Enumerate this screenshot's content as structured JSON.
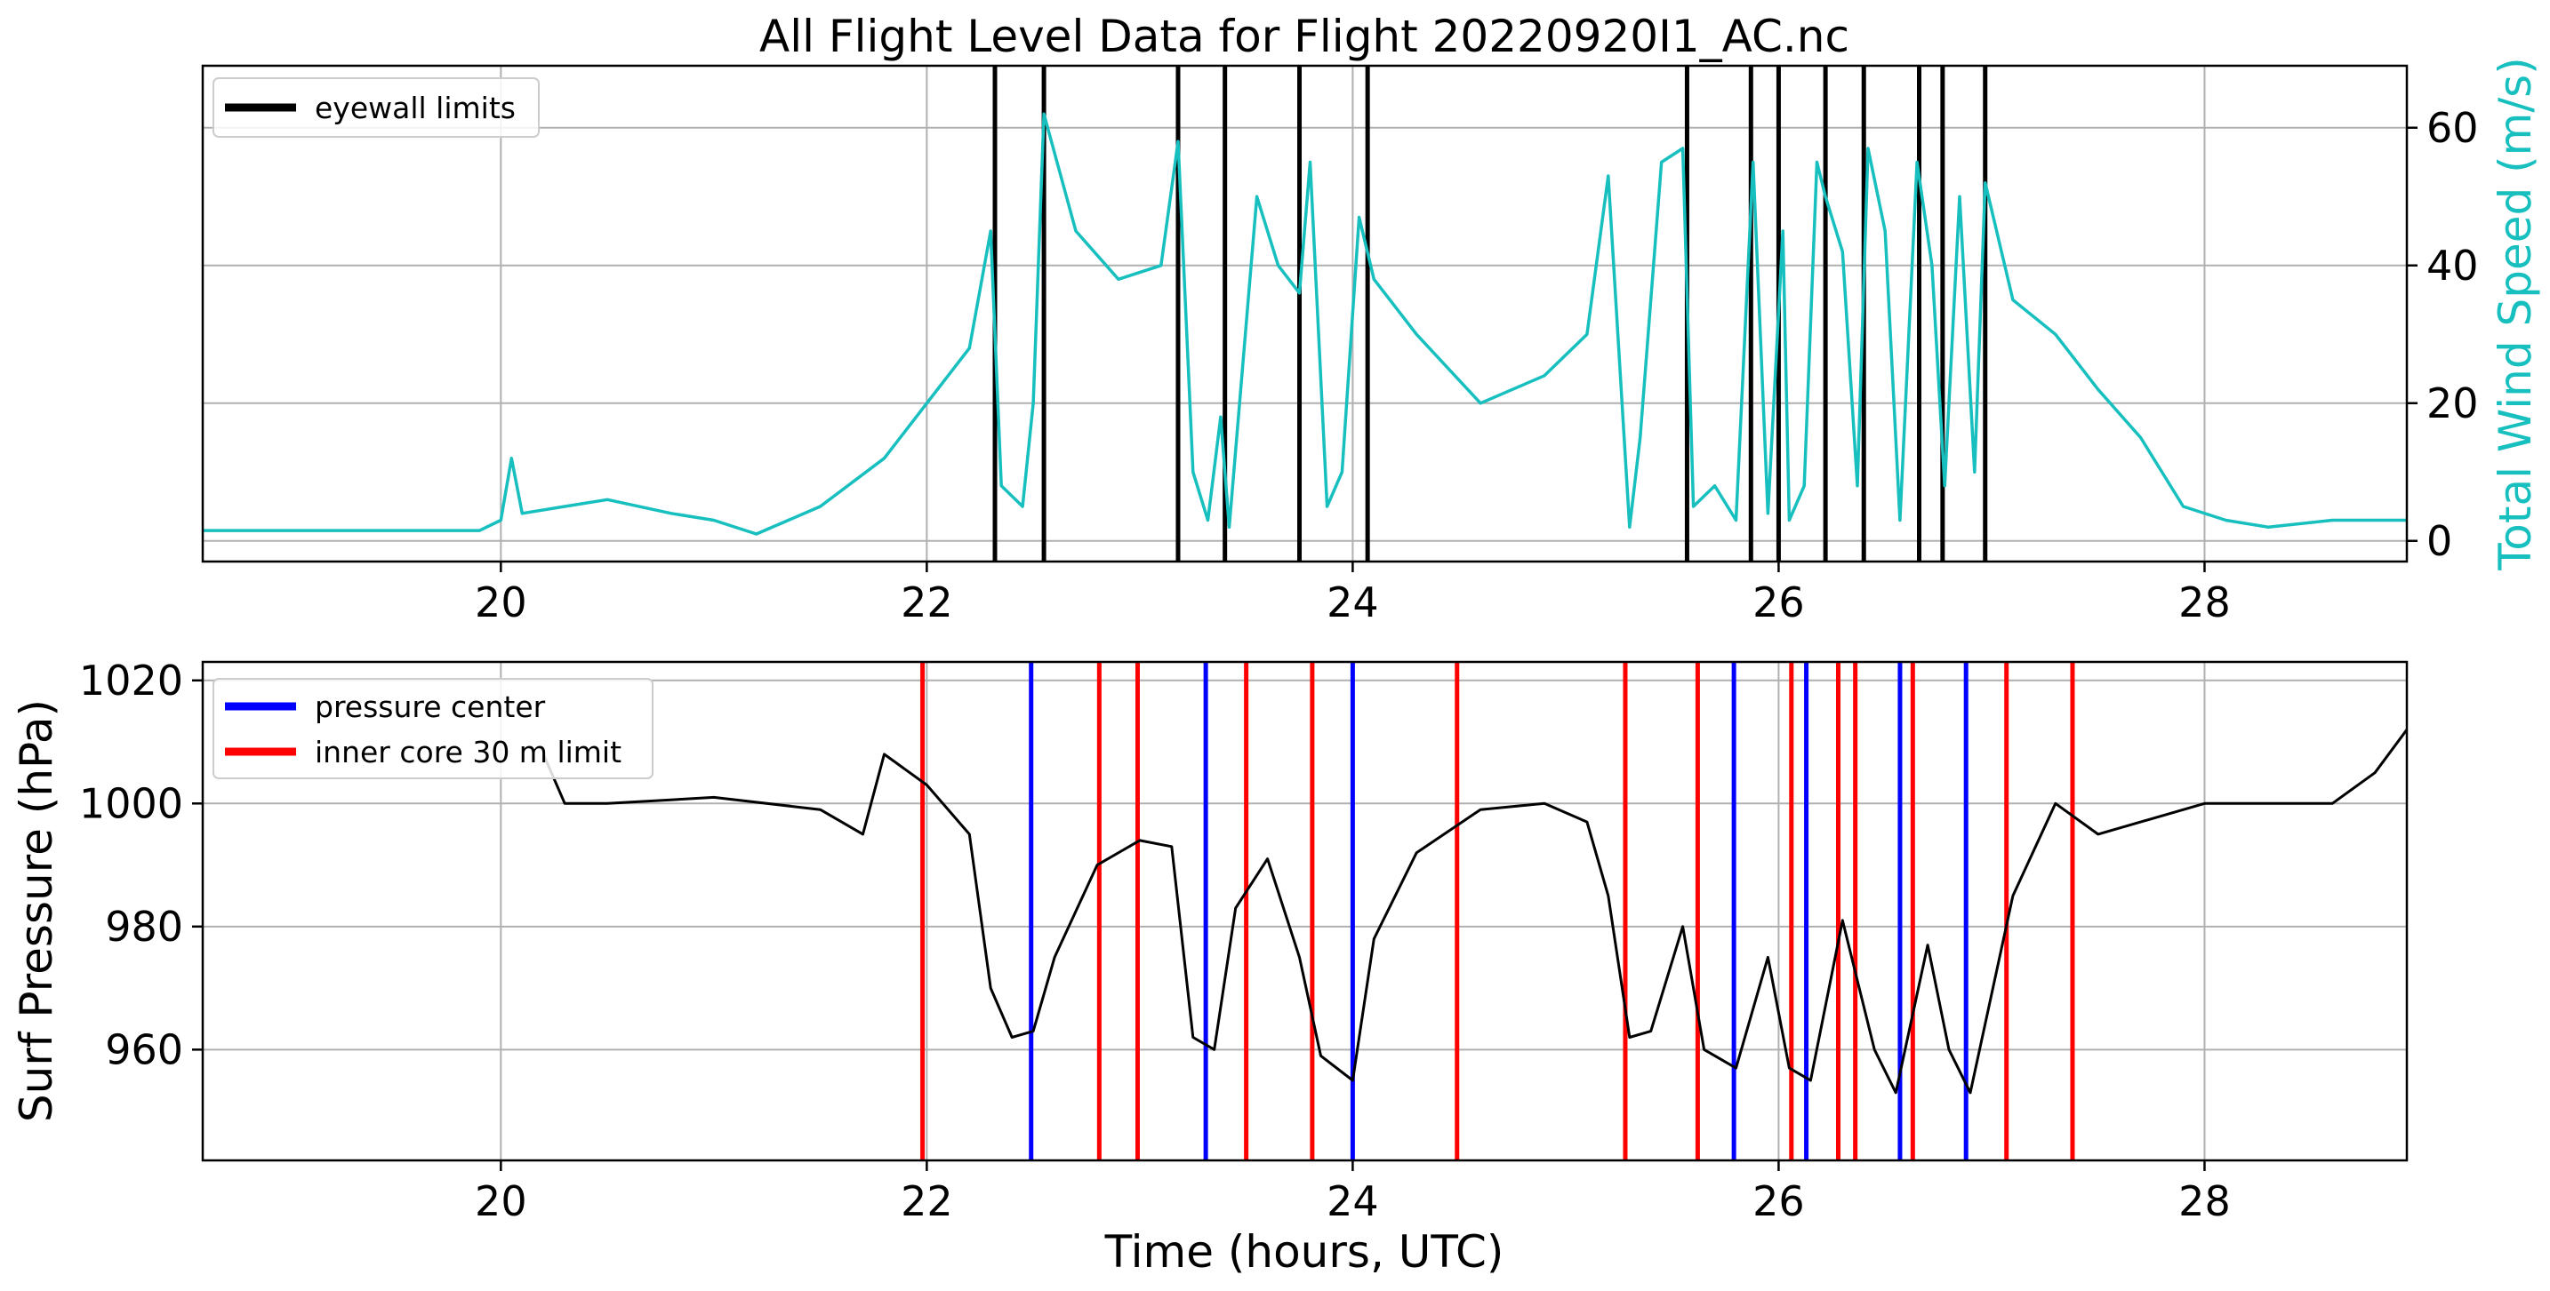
{
  "chart_data": [
    {
      "type": "line",
      "title": "All Flight Level Data for Flight 20220920I1_AC.nc",
      "ylabel_right": "Total Wind Speed (m/s)",
      "xlim": [
        18.6,
        28.95
      ],
      "ylim": [
        -3,
        69
      ],
      "xticks": [
        "20",
        "22",
        "24",
        "26",
        "28"
      ],
      "yticks_right": [
        "0",
        "20",
        "40",
        "60"
      ],
      "grid": true,
      "legend_position": "top-left",
      "legend": [
        "eyewall limits"
      ],
      "colors": {
        "series": "#17BFBF",
        "eyewall": "#000000"
      },
      "series": [
        {
          "x": [
            18.6,
            19.9,
            20.0,
            20.05,
            20.1,
            20.3,
            20.5,
            20.8,
            21.0,
            21.2,
            21.5,
            21.8,
            22.0,
            22.2,
            22.3,
            22.35,
            22.45,
            22.5,
            22.55,
            22.7,
            22.9,
            23.1,
            23.18,
            23.25,
            23.32,
            23.38,
            23.42,
            23.55,
            23.65,
            23.75,
            23.8,
            23.88,
            23.95,
            24.03,
            24.1,
            24.3,
            24.6,
            24.9,
            25.1,
            25.2,
            25.3,
            25.35,
            25.45,
            25.55,
            25.6,
            25.7,
            25.8,
            25.88,
            25.95,
            26.02,
            26.05,
            26.12,
            26.18,
            26.22,
            26.3,
            26.37,
            26.42,
            26.5,
            26.57,
            26.65,
            26.72,
            26.78,
            26.85,
            26.92,
            26.97,
            27.1,
            27.3,
            27.5,
            27.7,
            27.9,
            28.1,
            28.3,
            28.6,
            28.95
          ],
          "y": [
            1.5,
            1.5,
            3,
            12,
            4,
            5,
            6,
            4,
            3,
            1,
            5,
            12,
            20,
            28,
            45,
            8,
            5,
            20,
            62,
            45,
            38,
            40,
            58,
            10,
            3,
            18,
            2,
            50,
            40,
            36,
            55,
            5,
            10,
            47,
            38,
            30,
            20,
            24,
            30,
            53,
            2,
            15,
            55,
            57,
            5,
            8,
            3,
            55,
            4,
            45,
            3,
            8,
            55,
            50,
            42,
            8,
            57,
            45,
            3,
            55,
            40,
            8,
            50,
            10,
            52,
            35,
            30,
            22,
            15,
            5,
            3,
            2,
            3,
            3
          ]
        }
      ],
      "eyewall_limits": [
        22.32,
        22.55,
        23.18,
        23.4,
        23.75,
        24.07,
        25.57,
        25.87,
        26.0,
        26.22,
        26.4,
        26.66,
        26.77,
        26.97
      ]
    },
    {
      "type": "line",
      "ylabel": "Surf Pressure (hPa)",
      "xlabel": "Time (hours, UTC)",
      "xlim": [
        18.6,
        28.95
      ],
      "ylim": [
        942,
        1023
      ],
      "xticks": [
        "20",
        "22",
        "24",
        "26",
        "28"
      ],
      "yticks": [
        "960",
        "980",
        "1000",
        "1020"
      ],
      "grid": true,
      "legend_position": "top-left",
      "legend": [
        "pressure center",
        "inner core 30 m limit"
      ],
      "colors": {
        "series": "#000000",
        "pressure_center": "#0000FF",
        "inner_core": "#FF0000"
      },
      "series": [
        {
          "x": [
            20.2,
            20.3,
            20.5,
            21.0,
            21.5,
            21.7,
            21.8,
            22.0,
            22.2,
            22.3,
            22.4,
            22.5,
            22.6,
            22.8,
            23.0,
            23.15,
            23.25,
            23.35,
            23.45,
            23.6,
            23.75,
            23.85,
            24.0,
            24.1,
            24.3,
            24.6,
            24.9,
            25.1,
            25.2,
            25.3,
            25.4,
            25.55,
            25.65,
            25.8,
            25.95,
            26.05,
            26.15,
            26.3,
            26.45,
            26.55,
            26.7,
            26.8,
            26.9,
            27.1,
            27.3,
            27.5,
            27.7,
            28.0,
            28.3,
            28.6,
            28.8,
            28.95
          ],
          "y": [
            1008,
            1000,
            1000,
            1001,
            999,
            995,
            1008,
            1003,
            995,
            970,
            962,
            963,
            975,
            990,
            994,
            993,
            962,
            960,
            983,
            991,
            975,
            959,
            955,
            978,
            992,
            999,
            1000,
            997,
            985,
            962,
            963,
            980,
            960,
            957,
            975,
            957,
            955,
            981,
            960,
            953,
            977,
            960,
            953,
            985,
            1000,
            995,
            997,
            1000,
            1000,
            1000,
            1005,
            1012
          ]
        }
      ],
      "pressure_center": [
        22.49,
        23.31,
        24.0,
        25.79,
        26.13,
        26.57,
        26.88
      ],
      "inner_core_limits": [
        21.98,
        22.81,
        22.99,
        23.5,
        23.81,
        24.49,
        25.28,
        25.62,
        26.06,
        26.28,
        26.36,
        26.63,
        27.07,
        27.38
      ]
    }
  ]
}
